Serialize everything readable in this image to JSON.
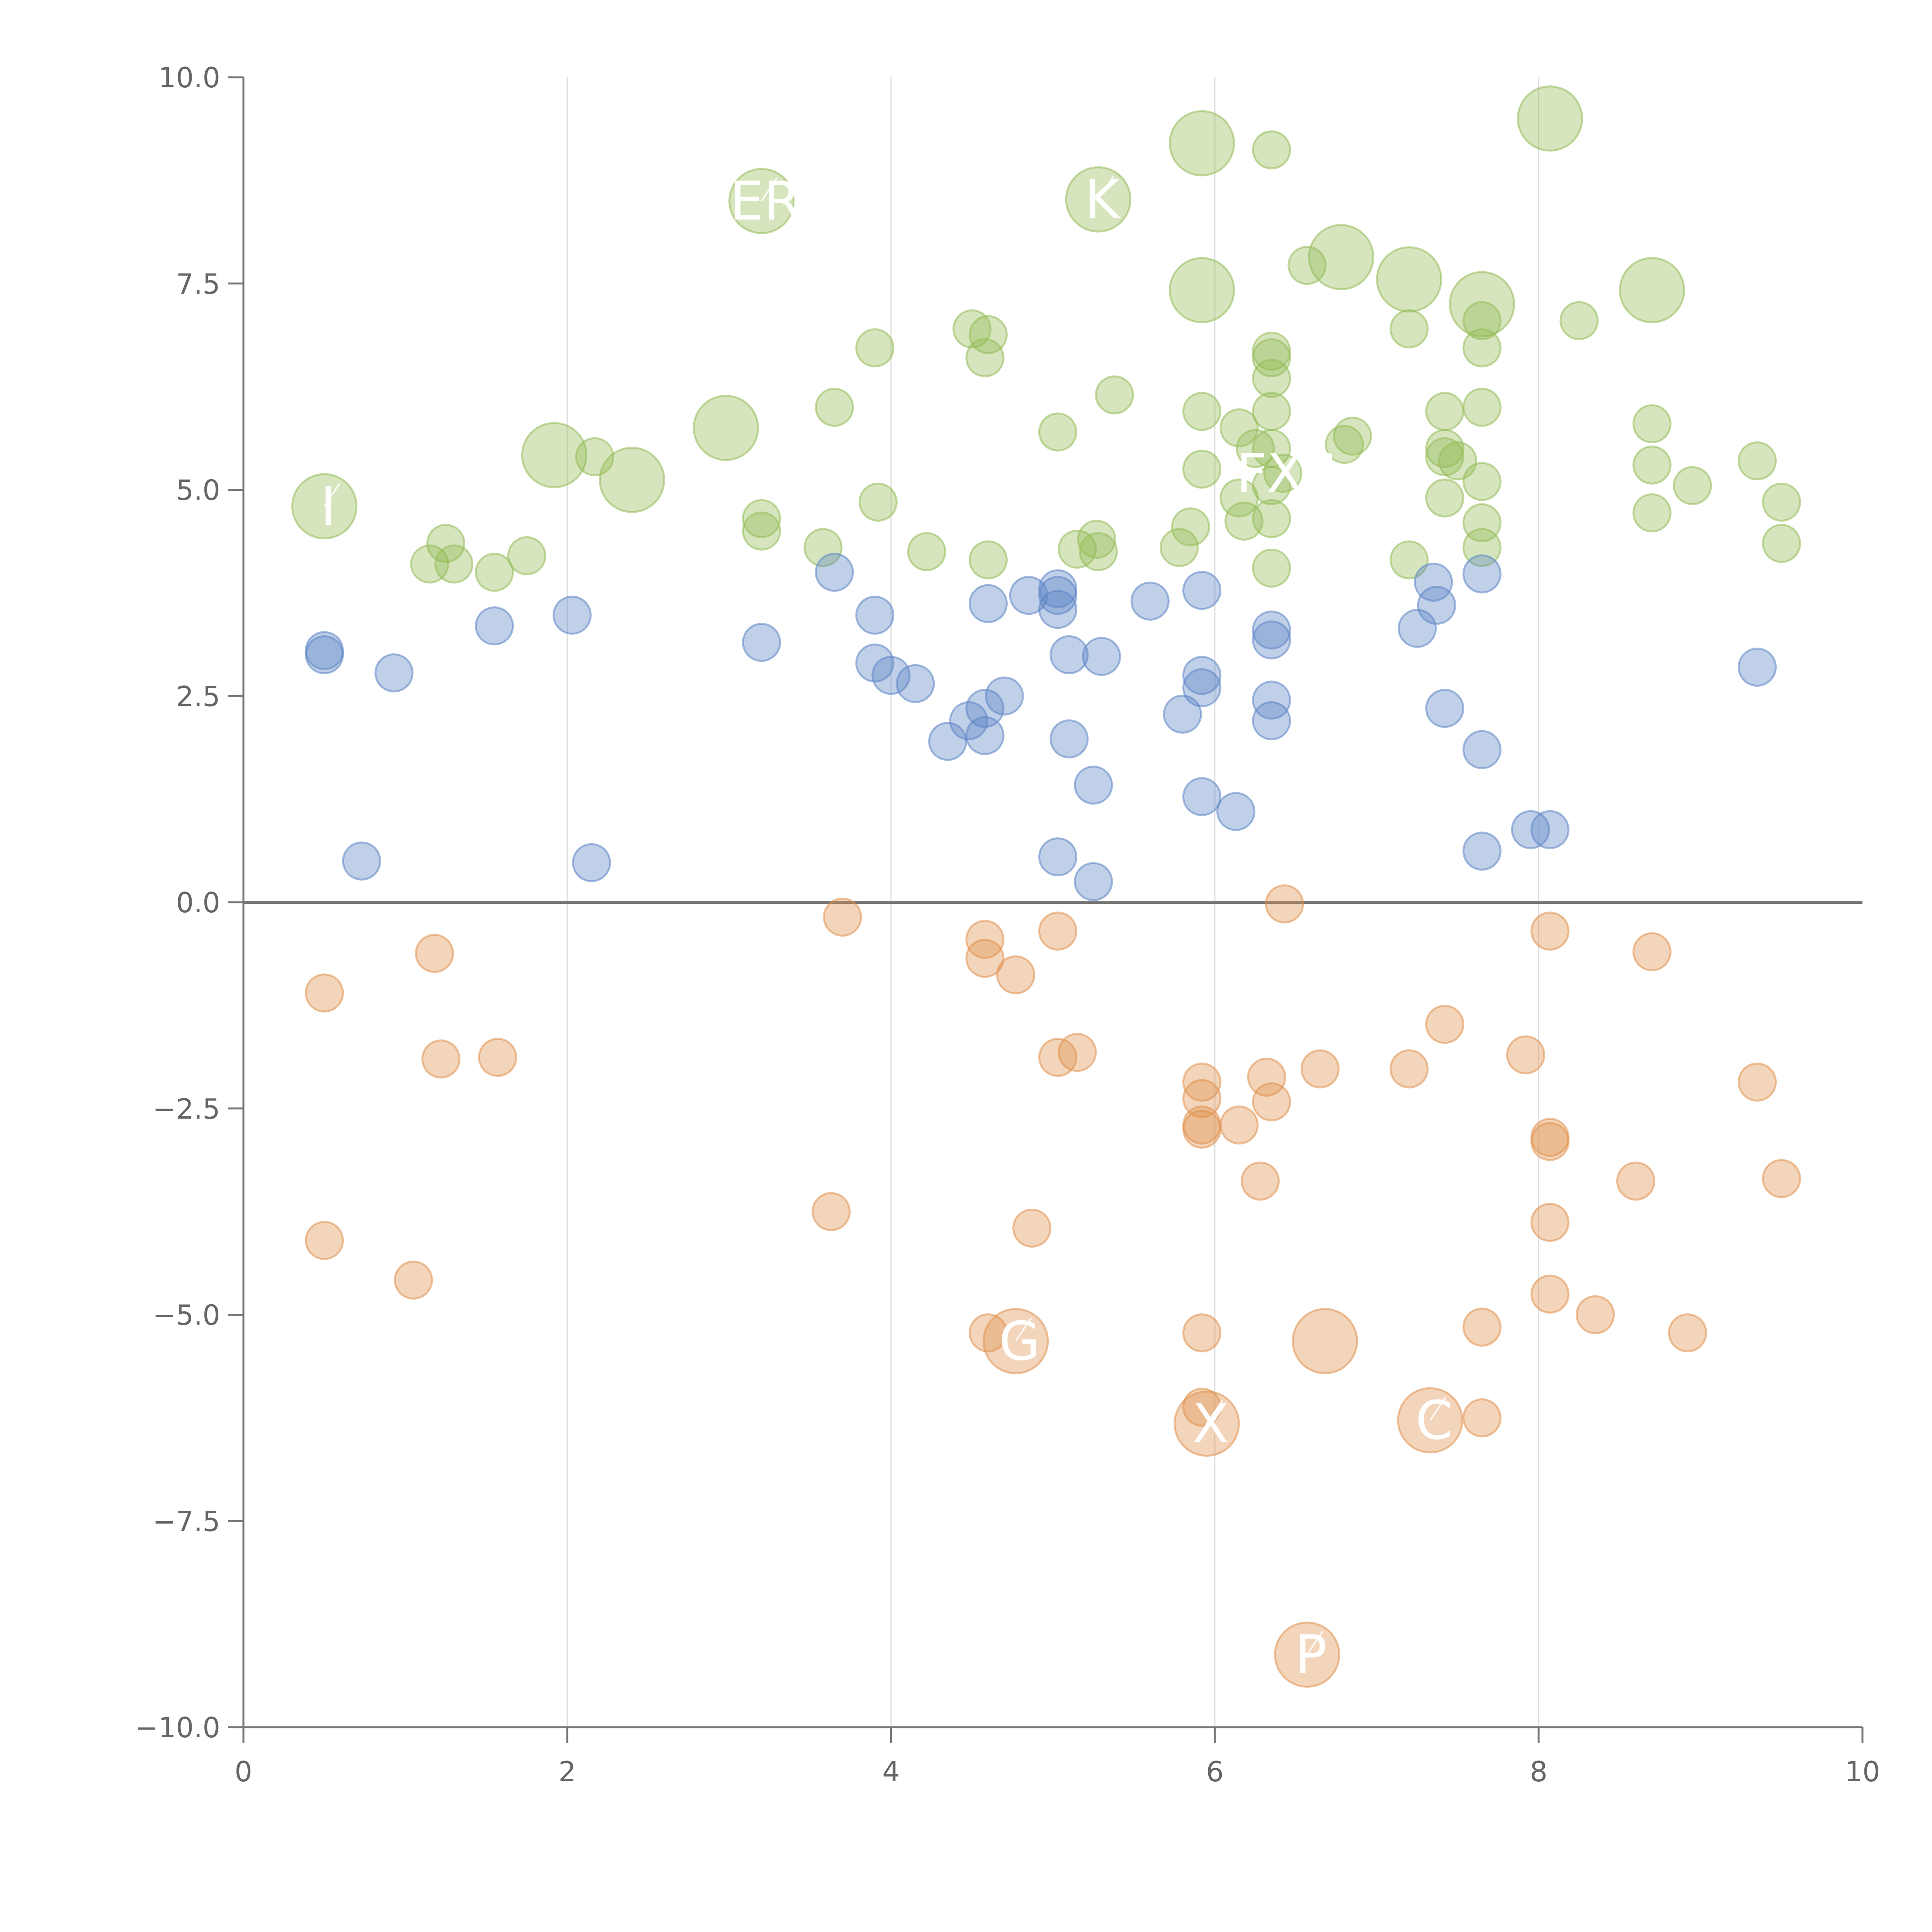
{
  "chart_data": {
    "type": "scatter",
    "title": "",
    "xlabel": "",
    "ylabel": "",
    "xlim": [
      0,
      10
    ],
    "ylim": [
      -10,
      10
    ],
    "grid": "vertical lines at major x ticks",
    "x_ticks": [
      0,
      2,
      4,
      6,
      8,
      10
    ],
    "x_tick_labels": [
      "0",
      "2",
      "4",
      "6",
      "8",
      "10"
    ],
    "y_ticks": [
      -10,
      -7.5,
      -5,
      -2.5,
      0,
      2.5,
      5,
      7.5,
      10
    ],
    "y_tick_labels": [
      "−10.0",
      "−7.5",
      "−5.0",
      "−2.5",
      "0.0",
      "2.5",
      "5.0",
      "7.5",
      "10.0"
    ],
    "reference_line_y": 0,
    "colors": {
      "green": "#93bb55",
      "blue": "#5b84c4",
      "orange": "#e0904c",
      "axis": "#777777",
      "grid": "#dddddd",
      "label": "#ffffff"
    },
    "series": [
      {
        "name": "green",
        "color": "#93bb55",
        "points": [
          {
            "x": 0.5,
            "y": 4.8,
            "s": 3.0,
            "label": "I"
          },
          {
            "x": 1.15,
            "y": 4.1,
            "s": 1
          },
          {
            "x": 1.25,
            "y": 4.35,
            "s": 1
          },
          {
            "x": 1.3,
            "y": 4.1,
            "s": 1
          },
          {
            "x": 1.55,
            "y": 4.0,
            "s": 1
          },
          {
            "x": 1.75,
            "y": 4.2,
            "s": 1
          },
          {
            "x": 1.92,
            "y": 5.42,
            "s": 3.0
          },
          {
            "x": 2.17,
            "y": 5.4,
            "s": 1
          },
          {
            "x": 2.4,
            "y": 5.12,
            "s": 3.0
          },
          {
            "x": 2.98,
            "y": 5.75,
            "s": 3.0
          },
          {
            "x": 3.2,
            "y": 8.5,
            "s": 3.0,
            "label": "ER"
          },
          {
            "x": 3.2,
            "y": 4.65,
            "s": 1
          },
          {
            "x": 3.2,
            "y": 4.5,
            "s": 1
          },
          {
            "x": 3.58,
            "y": 4.3,
            "s": 1
          },
          {
            "x": 3.65,
            "y": 6.0,
            "s": 1
          },
          {
            "x": 3.9,
            "y": 6.72,
            "s": 1
          },
          {
            "x": 3.92,
            "y": 4.85,
            "s": 1
          },
          {
            "x": 4.22,
            "y": 4.25,
            "s": 1
          },
          {
            "x": 4.5,
            "y": 6.95,
            "s": 1
          },
          {
            "x": 4.58,
            "y": 6.6,
            "s": 1
          },
          {
            "x": 4.6,
            "y": 6.88,
            "s": 1
          },
          {
            "x": 4.6,
            "y": 4.15,
            "s": 1
          },
          {
            "x": 5.03,
            "y": 5.7,
            "s": 1
          },
          {
            "x": 5.15,
            "y": 4.28,
            "s": 1
          },
          {
            "x": 5.27,
            "y": 4.4,
            "s": 1
          },
          {
            "x": 5.28,
            "y": 4.25,
            "s": 1
          },
          {
            "x": 5.28,
            "y": 8.52,
            "s": 3.0,
            "label": "K"
          },
          {
            "x": 5.38,
            "y": 6.15,
            "s": 1
          },
          {
            "x": 5.92,
            "y": 9.2,
            "s": 3.0
          },
          {
            "x": 5.92,
            "y": 7.42,
            "s": 3.0
          },
          {
            "x": 5.78,
            "y": 4.3,
            "s": 1
          },
          {
            "x": 5.85,
            "y": 4.55,
            "s": 1
          },
          {
            "x": 5.92,
            "y": 5.95,
            "s": 1
          },
          {
            "x": 5.92,
            "y": 5.25,
            "s": 1
          },
          {
            "x": 6.15,
            "y": 5.75,
            "s": 1
          },
          {
            "x": 6.15,
            "y": 4.9,
            "s": 1
          },
          {
            "x": 6.18,
            "y": 4.62,
            "s": 1
          },
          {
            "x": 6.25,
            "y": 5.5,
            "s": 1
          },
          {
            "x": 6.35,
            "y": 9.12,
            "s": 1
          },
          {
            "x": 6.35,
            "y": 6.68,
            "s": 1
          },
          {
            "x": 6.35,
            "y": 6.6,
            "s": 1
          },
          {
            "x": 6.35,
            "y": 6.35,
            "s": 1
          },
          {
            "x": 6.35,
            "y": 5.95,
            "s": 1
          },
          {
            "x": 6.35,
            "y": 5.5,
            "s": 1
          },
          {
            "x": 6.35,
            "y": 5.05,
            "s": 1
          },
          {
            "x": 6.35,
            "y": 4.65,
            "s": 1
          },
          {
            "x": 6.35,
            "y": 4.05,
            "s": 1
          },
          {
            "x": 6.42,
            "y": 5.2,
            "s": 1,
            "label": "FXS"
          },
          {
            "x": 6.57,
            "y": 7.72,
            "s": 1
          },
          {
            "x": 6.78,
            "y": 7.82,
            "s": 3.0
          },
          {
            "x": 6.8,
            "y": 5.55,
            "s": 1
          },
          {
            "x": 6.85,
            "y": 5.65,
            "s": 1
          },
          {
            "x": 7.2,
            "y": 7.55,
            "s": 3.0
          },
          {
            "x": 7.2,
            "y": 6.95,
            "s": 1
          },
          {
            "x": 7.2,
            "y": 4.15,
            "s": 1
          },
          {
            "x": 7.42,
            "y": 5.95,
            "s": 1
          },
          {
            "x": 7.42,
            "y": 5.5,
            "s": 1
          },
          {
            "x": 7.42,
            "y": 5.4,
            "s": 1
          },
          {
            "x": 7.42,
            "y": 4.9,
            "s": 1
          },
          {
            "x": 7.5,
            "y": 5.35,
            "s": 1
          },
          {
            "x": 7.65,
            "y": 7.25,
            "s": 3.0
          },
          {
            "x": 7.65,
            "y": 7.05,
            "s": 1
          },
          {
            "x": 7.65,
            "y": 6.72,
            "s": 1
          },
          {
            "x": 7.65,
            "y": 6.0,
            "s": 1
          },
          {
            "x": 7.65,
            "y": 5.1,
            "s": 1
          },
          {
            "x": 7.65,
            "y": 4.6,
            "s": 1
          },
          {
            "x": 7.65,
            "y": 4.3,
            "s": 1
          },
          {
            "x": 8.07,
            "y": 9.5,
            "s": 3.0
          },
          {
            "x": 8.25,
            "y": 7.05,
            "s": 1
          },
          {
            "x": 8.7,
            "y": 7.42,
            "s": 3.0
          },
          {
            "x": 8.7,
            "y": 5.8,
            "s": 1
          },
          {
            "x": 8.7,
            "y": 5.3,
            "s": 1
          },
          {
            "x": 8.7,
            "y": 4.72,
            "s": 1
          },
          {
            "x": 8.95,
            "y": 5.05,
            "s": 1
          },
          {
            "x": 9.35,
            "y": 5.35,
            "s": 1
          },
          {
            "x": 9.5,
            "y": 4.85,
            "s": 1
          },
          {
            "x": 9.5,
            "y": 4.35,
            "s": 1
          }
        ]
      },
      {
        "name": "blue",
        "color": "#5b84c4",
        "points": [
          {
            "x": 0.5,
            "y": 3.05,
            "s": 1
          },
          {
            "x": 0.5,
            "y": 3.0,
            "s": 1
          },
          {
            "x": 0.73,
            "y": 0.5,
            "s": 1
          },
          {
            "x": 0.93,
            "y": 2.78,
            "s": 1
          },
          {
            "x": 1.55,
            "y": 3.35,
            "s": 1
          },
          {
            "x": 2.03,
            "y": 3.48,
            "s": 1
          },
          {
            "x": 2.15,
            "y": 0.48,
            "s": 1
          },
          {
            "x": 3.2,
            "y": 3.15,
            "s": 1
          },
          {
            "x": 3.65,
            "y": 4.0,
            "s": 1
          },
          {
            "x": 3.9,
            "y": 3.48,
            "s": 1
          },
          {
            "x": 3.9,
            "y": 2.9,
            "s": 1
          },
          {
            "x": 4.0,
            "y": 2.75,
            "s": 1
          },
          {
            "x": 4.15,
            "y": 2.65,
            "s": 1
          },
          {
            "x": 4.35,
            "y": 1.95,
            "s": 1
          },
          {
            "x": 4.48,
            "y": 2.2,
            "s": 1
          },
          {
            "x": 4.58,
            "y": 2.35,
            "s": 1
          },
          {
            "x": 4.58,
            "y": 2.02,
            "s": 1
          },
          {
            "x": 4.6,
            "y": 3.62,
            "s": 1
          },
          {
            "x": 4.7,
            "y": 2.5,
            "s": 1
          },
          {
            "x": 4.85,
            "y": 3.72,
            "s": 1
          },
          {
            "x": 5.03,
            "y": 3.8,
            "s": 1
          },
          {
            "x": 5.03,
            "y": 3.72,
            "s": 1
          },
          {
            "x": 5.03,
            "y": 3.55,
            "s": 1
          },
          {
            "x": 5.03,
            "y": 0.55,
            "s": 1
          },
          {
            "x": 5.1,
            "y": 3.0,
            "s": 1
          },
          {
            "x": 5.1,
            "y": 1.98,
            "s": 1
          },
          {
            "x": 5.25,
            "y": 1.42,
            "s": 1
          },
          {
            "x": 5.25,
            "y": 0.25,
            "s": 1
          },
          {
            "x": 5.3,
            "y": 2.98,
            "s": 1
          },
          {
            "x": 5.6,
            "y": 3.65,
            "s": 1
          },
          {
            "x": 5.8,
            "y": 2.28,
            "s": 1
          },
          {
            "x": 5.92,
            "y": 3.78,
            "s": 1
          },
          {
            "x": 5.92,
            "y": 2.75,
            "s": 1
          },
          {
            "x": 5.92,
            "y": 2.6,
            "s": 1
          },
          {
            "x": 5.92,
            "y": 1.28,
            "s": 1
          },
          {
            "x": 6.13,
            "y": 1.1,
            "s": 1
          },
          {
            "x": 6.35,
            "y": 3.3,
            "s": 1
          },
          {
            "x": 6.35,
            "y": 3.18,
            "s": 1
          },
          {
            "x": 6.35,
            "y": 2.45,
            "s": 1
          },
          {
            "x": 6.35,
            "y": 2.2,
            "s": 1
          },
          {
            "x": 7.25,
            "y": 3.32,
            "s": 1
          },
          {
            "x": 7.35,
            "y": 3.88,
            "s": 1
          },
          {
            "x": 7.37,
            "y": 3.6,
            "s": 1
          },
          {
            "x": 7.42,
            "y": 2.35,
            "s": 1
          },
          {
            "x": 7.65,
            "y": 3.98,
            "s": 1
          },
          {
            "x": 7.65,
            "y": 1.85,
            "s": 1
          },
          {
            "x": 7.65,
            "y": 0.62,
            "s": 1
          },
          {
            "x": 7.95,
            "y": 0.88,
            "s": 1
          },
          {
            "x": 8.07,
            "y": 0.88,
            "s": 1
          },
          {
            "x": 9.35,
            "y": 2.85,
            "s": 1
          }
        ]
      },
      {
        "name": "orange",
        "color": "#e0904c",
        "points": [
          {
            "x": 0.5,
            "y": -1.1,
            "s": 1
          },
          {
            "x": 0.5,
            "y": -4.1,
            "s": 1
          },
          {
            "x": 1.05,
            "y": -4.58,
            "s": 1
          },
          {
            "x": 1.18,
            "y": -0.62,
            "s": 1
          },
          {
            "x": 1.22,
            "y": -1.9,
            "s": 1
          },
          {
            "x": 1.57,
            "y": -1.88,
            "s": 1
          },
          {
            "x": 3.63,
            "y": -3.75,
            "s": 1
          },
          {
            "x": 3.7,
            "y": -0.18,
            "s": 1
          },
          {
            "x": 4.58,
            "y": -0.45,
            "s": 1
          },
          {
            "x": 4.58,
            "y": -0.68,
            "s": 1
          },
          {
            "x": 4.6,
            "y": -5.22,
            "s": 1
          },
          {
            "x": 4.77,
            "y": -5.32,
            "s": 3.0,
            "label": "G"
          },
          {
            "x": 4.77,
            "y": -0.88,
            "s": 1
          },
          {
            "x": 4.87,
            "y": -3.95,
            "s": 1
          },
          {
            "x": 5.03,
            "y": -0.35,
            "s": 1
          },
          {
            "x": 5.03,
            "y": -1.88,
            "s": 1
          },
          {
            "x": 5.15,
            "y": -1.82,
            "s": 1
          },
          {
            "x": 5.92,
            "y": -2.18,
            "s": 1
          },
          {
            "x": 5.92,
            "y": -2.38,
            "s": 1
          },
          {
            "x": 5.92,
            "y": -2.7,
            "s": 1
          },
          {
            "x": 5.92,
            "y": -2.75,
            "s": 1
          },
          {
            "x": 5.92,
            "y": -5.22,
            "s": 1
          },
          {
            "x": 5.92,
            "y": -6.12,
            "s": 1
          },
          {
            "x": 5.95,
            "y": -6.32,
            "s": 3.0,
            "label": "X"
          },
          {
            "x": 6.15,
            "y": -2.7,
            "s": 1
          },
          {
            "x": 6.28,
            "y": -3.38,
            "s": 1
          },
          {
            "x": 6.32,
            "y": -2.12,
            "s": 1
          },
          {
            "x": 6.35,
            "y": -2.42,
            "s": 1
          },
          {
            "x": 6.43,
            "y": -0.02,
            "s": 1
          },
          {
            "x": 6.65,
            "y": -2.02,
            "s": 1
          },
          {
            "x": 6.57,
            "y": -9.12,
            "s": 3.0,
            "label": "P"
          },
          {
            "x": 6.68,
            "y": -5.32,
            "s": 3.0
          },
          {
            "x": 7.2,
            "y": -2.02,
            "s": 1
          },
          {
            "x": 7.33,
            "y": -6.28,
            "s": 3.0,
            "label": "C"
          },
          {
            "x": 7.42,
            "y": -1.48,
            "s": 1
          },
          {
            "x": 7.65,
            "y": -5.15,
            "s": 1
          },
          {
            "x": 7.65,
            "y": -6.25,
            "s": 1
          },
          {
            "x": 7.92,
            "y": -1.85,
            "s": 1
          },
          {
            "x": 8.07,
            "y": -0.35,
            "s": 1
          },
          {
            "x": 8.07,
            "y": -2.85,
            "s": 1
          },
          {
            "x": 8.07,
            "y": -2.9,
            "s": 1
          },
          {
            "x": 8.07,
            "y": -3.88,
            "s": 1
          },
          {
            "x": 8.07,
            "y": -4.75,
            "s": 1
          },
          {
            "x": 8.35,
            "y": -5.0,
            "s": 1
          },
          {
            "x": 8.6,
            "y": -3.38,
            "s": 1
          },
          {
            "x": 8.7,
            "y": -0.6,
            "s": 1
          },
          {
            "x": 8.92,
            "y": -5.22,
            "s": 1
          },
          {
            "x": 9.35,
            "y": -2.18,
            "s": 1
          },
          {
            "x": 9.5,
            "y": -3.35,
            "s": 1
          }
        ]
      }
    ]
  }
}
